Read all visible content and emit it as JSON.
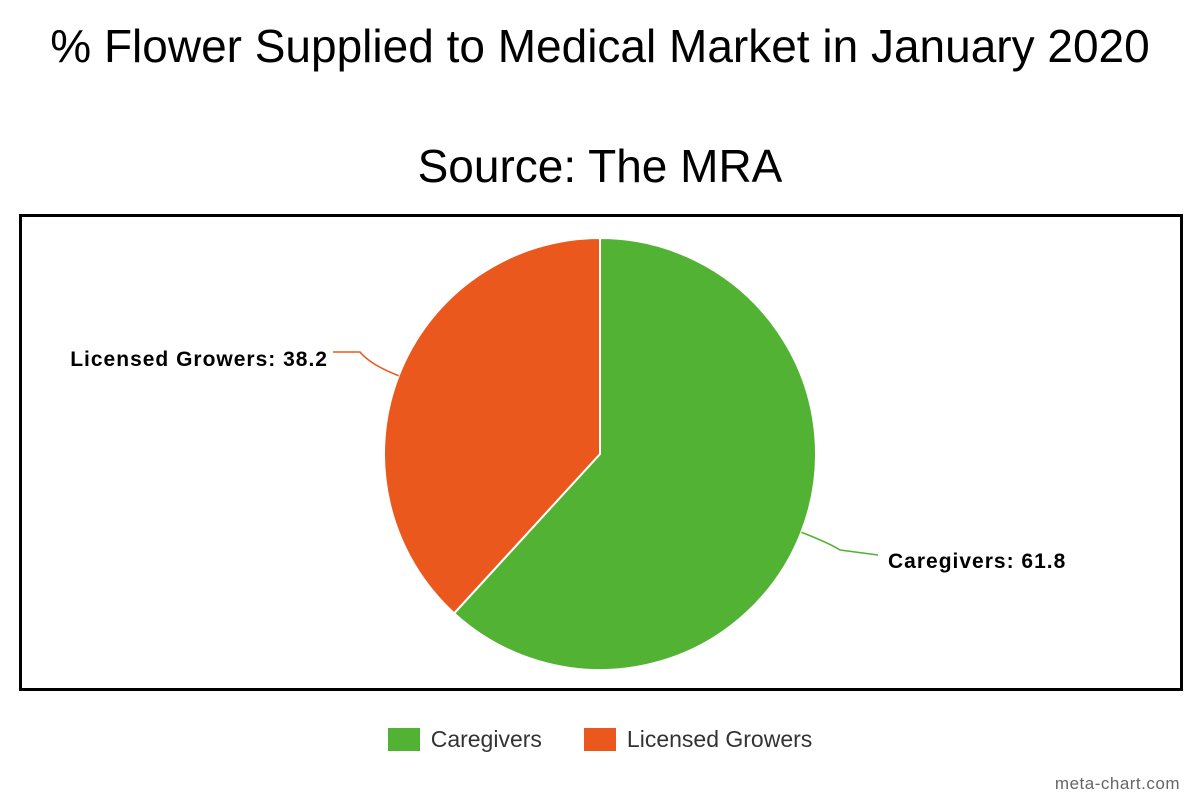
{
  "chart_data": {
    "type": "pie",
    "title": "% Flower Supplied to Medical Market in January 2020",
    "subtitle": "Source: The MRA",
    "categories": [
      "Caregivers",
      "Licensed Growers"
    ],
    "values": [
      61.8,
      38.2
    ],
    "colors": [
      "#52b234",
      "#eb581e"
    ],
    "data_labels": [
      "Caregivers: 61.8",
      "Licensed Growers: 38.2"
    ],
    "legend": {
      "placement": "bottom",
      "entries": [
        "Caregivers",
        "Licensed Growers"
      ]
    }
  },
  "watermark": "meta-chart.com"
}
